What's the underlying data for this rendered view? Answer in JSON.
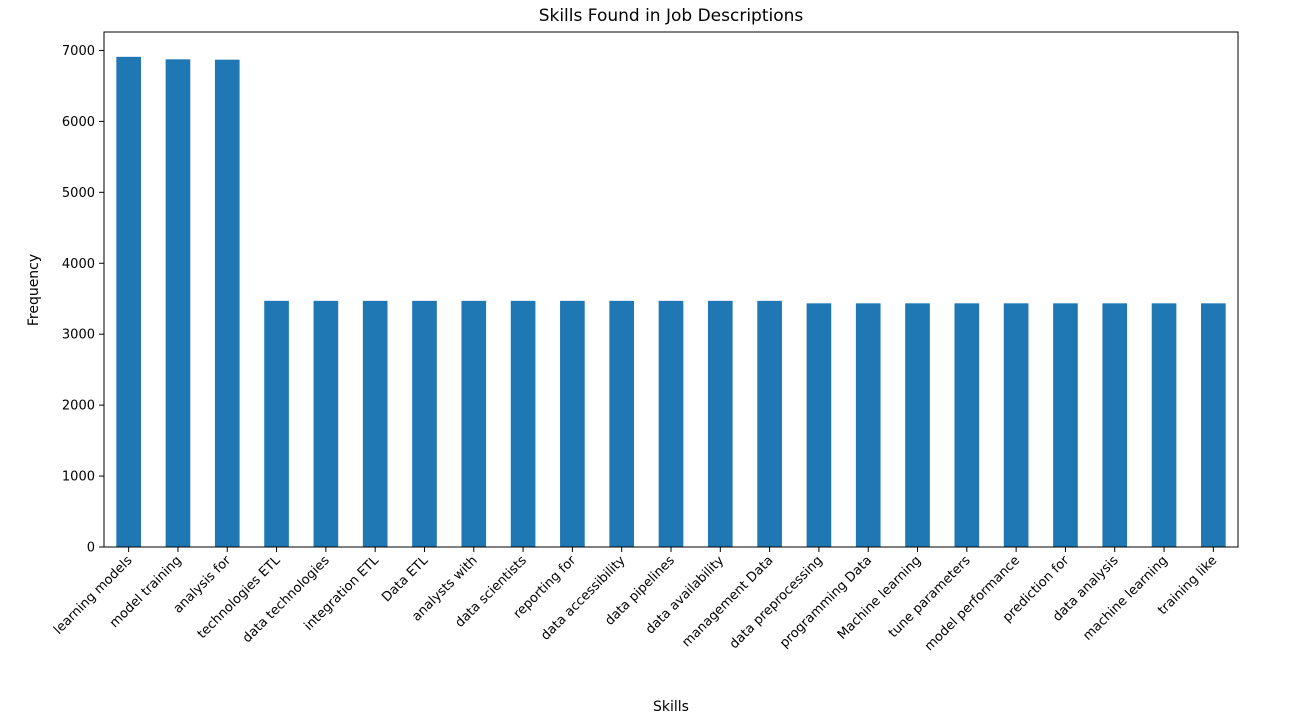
{
  "chart_data": {
    "type": "bar",
    "title": "Skills Found in Job Descriptions",
    "xlabel": "Skills",
    "ylabel": "Frequency",
    "ylim": [
      0,
      7260
    ],
    "yticks": [
      0,
      1000,
      2000,
      3000,
      4000,
      5000,
      6000,
      7000
    ],
    "grid": false,
    "bar_color": "#1f77b4",
    "categories": [
      "learning models",
      "model training",
      "analysis for",
      "technologies ETL",
      "data technologies",
      "integration ETL",
      "Data ETL",
      "analysts with",
      "data scientists",
      "reporting for",
      "data accessibility",
      "data pipelines",
      "data availability",
      "management Data",
      "data preprocessing",
      "programming Data",
      "Machine learning",
      "tune parameters",
      "model performance",
      "prediction for",
      "data analysis",
      "machine learning",
      "training like"
    ],
    "values": [
      6910,
      6875,
      6870,
      3470,
      3470,
      3470,
      3470,
      3470,
      3470,
      3470,
      3470,
      3470,
      3470,
      3470,
      3435,
      3435,
      3435,
      3435,
      3435,
      3435,
      3435,
      3435,
      3435
    ]
  }
}
